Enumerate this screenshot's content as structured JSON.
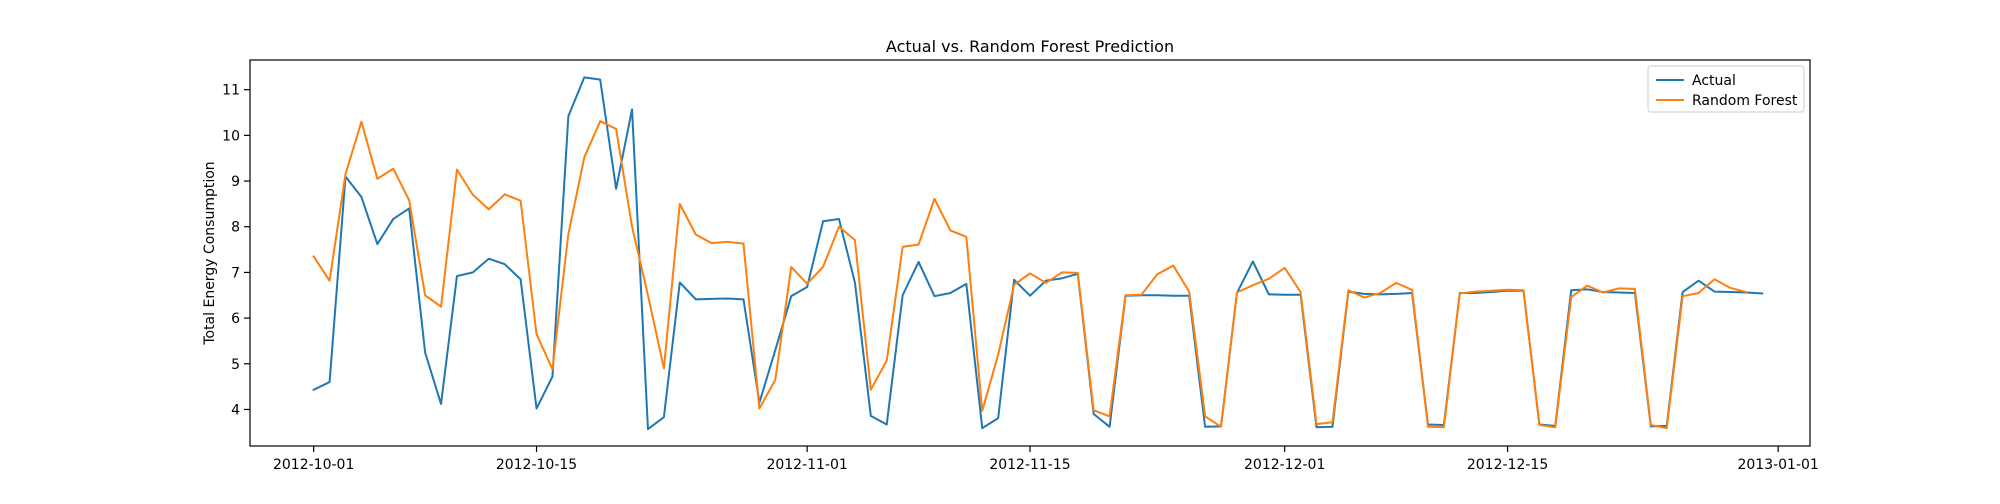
{
  "chart_data": {
    "type": "line",
    "title": "Actual vs. Random Forest Prediction",
    "xlabel": "",
    "ylabel": "Total Energy Consumption",
    "x_range": [
      "2012-09-27",
      "2013-01-03"
    ],
    "ylim": [
      3.2,
      11.65
    ],
    "x_ticks": [
      "2012-10-01",
      "2012-10-15",
      "2012-11-01",
      "2012-11-15",
      "2012-12-01",
      "2012-12-15",
      "2013-01-01"
    ],
    "y_ticks": [
      4,
      5,
      6,
      7,
      8,
      9,
      10,
      11
    ],
    "grid": false,
    "legend_position": "top-right",
    "x": [
      "2012-10-01",
      "2012-10-02",
      "2012-10-03",
      "2012-10-04",
      "2012-10-05",
      "2012-10-06",
      "2012-10-07",
      "2012-10-08",
      "2012-10-09",
      "2012-10-10",
      "2012-10-11",
      "2012-10-12",
      "2012-10-13",
      "2012-10-14",
      "2012-10-15",
      "2012-10-16",
      "2012-10-17",
      "2012-10-18",
      "2012-10-19",
      "2012-10-20",
      "2012-10-21",
      "2012-10-22",
      "2012-10-23",
      "2012-10-24",
      "2012-10-25",
      "2012-10-26",
      "2012-10-27",
      "2012-10-28",
      "2012-10-29",
      "2012-10-30",
      "2012-10-31",
      "2012-11-01",
      "2012-11-02",
      "2012-11-03",
      "2012-11-04",
      "2012-11-05",
      "2012-11-06",
      "2012-11-07",
      "2012-11-08",
      "2012-11-09",
      "2012-11-10",
      "2012-11-11",
      "2012-11-12",
      "2012-11-13",
      "2012-11-14",
      "2012-11-15",
      "2012-11-16",
      "2012-11-17",
      "2012-11-18",
      "2012-11-19",
      "2012-11-20",
      "2012-11-21",
      "2012-11-22",
      "2012-11-23",
      "2012-11-24",
      "2012-11-25",
      "2012-11-26",
      "2012-11-27",
      "2012-11-28",
      "2012-11-29",
      "2012-11-30",
      "2012-12-01",
      "2012-12-02",
      "2012-12-03",
      "2012-12-04",
      "2012-12-05",
      "2012-12-06",
      "2012-12-07",
      "2012-12-08",
      "2012-12-09",
      "2012-12-10",
      "2012-12-11",
      "2012-12-12",
      "2012-12-13",
      "2012-12-14",
      "2012-12-15",
      "2012-12-16",
      "2012-12-17",
      "2012-12-18",
      "2012-12-19",
      "2012-12-20",
      "2012-12-21",
      "2012-12-22",
      "2012-12-23",
      "2012-12-24",
      "2012-12-25",
      "2012-12-26",
      "2012-12-27",
      "2012-12-28",
      "2012-12-29",
      "2012-12-30",
      "2012-12-31"
    ],
    "series": [
      {
        "name": "Actual",
        "color": "#1f77b4",
        "values": [
          4.43,
          4.6,
          9.1,
          8.65,
          7.62,
          8.17,
          8.4,
          5.25,
          4.12,
          6.92,
          7.0,
          7.3,
          7.18,
          6.85,
          4.02,
          4.72,
          10.42,
          11.27,
          11.22,
          8.83,
          10.57,
          3.57,
          3.83,
          6.78,
          6.41,
          6.42,
          6.43,
          6.41,
          4.15,
          5.3,
          6.48,
          6.68,
          8.12,
          8.17,
          6.78,
          3.86,
          3.67,
          6.5,
          7.23,
          6.48,
          6.55,
          6.75,
          3.59,
          3.81,
          6.84,
          6.49,
          6.82,
          6.87,
          6.97,
          3.9,
          3.62,
          6.49,
          6.5,
          6.5,
          6.49,
          6.49,
          3.62,
          3.63,
          6.55,
          7.24,
          6.52,
          6.51,
          6.51,
          3.61,
          3.62,
          6.58,
          6.53,
          6.52,
          6.53,
          6.55,
          3.67,
          3.66,
          6.55,
          6.55,
          6.57,
          6.6,
          6.6,
          3.67,
          3.64,
          6.61,
          6.63,
          6.57,
          6.56,
          6.55,
          3.63,
          3.64,
          6.57,
          6.82,
          6.58,
          6.57,
          6.56,
          6.54
        ],
        "x": [
          "2012-10-01",
          "2012-10-02",
          "2012-10-03",
          "2012-10-04",
          "2012-10-05",
          "2012-10-06",
          "2012-10-07",
          "2012-10-08",
          "2012-10-09",
          "2012-10-10",
          "2012-10-11",
          "2012-10-12",
          "2012-10-13",
          "2012-10-14",
          "2012-10-15",
          "2012-10-16",
          "2012-10-17",
          "2012-10-18",
          "2012-10-19",
          "2012-10-20",
          "2012-10-21",
          "2012-10-22",
          "2012-10-23",
          "2012-10-24",
          "2012-10-25",
          "2012-10-26",
          "2012-10-27",
          "2012-10-28",
          "2012-10-29",
          "2012-10-30",
          "2012-10-31",
          "2012-11-01",
          "2012-11-02",
          "2012-11-03",
          "2012-11-04",
          "2012-11-05",
          "2012-11-06",
          "2012-11-07",
          "2012-11-08",
          "2012-11-09",
          "2012-11-10",
          "2012-11-11",
          "2012-11-12",
          "2012-11-13",
          "2012-11-14",
          "2012-11-15",
          "2012-11-16",
          "2012-11-17",
          "2012-11-18",
          "2012-11-19",
          "2012-11-20",
          "2012-11-21",
          "2012-11-22",
          "2012-11-23",
          "2012-11-24",
          "2012-11-25",
          "2012-11-26",
          "2012-11-27",
          "2012-11-28",
          "2012-11-29",
          "2012-11-30",
          "2012-12-01",
          "2012-12-02",
          "2012-12-03",
          "2012-12-04",
          "2012-12-05",
          "2012-12-06",
          "2012-12-07",
          "2012-12-08",
          "2012-12-09",
          "2012-12-10",
          "2012-12-11",
          "2012-12-12",
          "2012-12-13",
          "2012-12-14",
          "2012-12-15",
          "2012-12-16",
          "2012-12-17",
          "2012-12-18",
          "2012-12-19",
          "2012-12-20",
          "2012-12-21",
          "2012-12-22",
          "2012-12-23",
          "2012-12-24",
          "2012-12-25",
          "2012-12-26",
          "2012-12-27",
          "2012-12-28",
          "2012-12-29",
          "2012-12-30",
          "2012-12-31"
        ]
      },
      {
        "name": "Random Forest",
        "color": "#ff7f0e",
        "values": [
          7.35,
          6.82,
          9.15,
          10.3,
          9.05,
          9.27,
          8.58,
          6.5,
          6.25,
          9.25,
          8.7,
          8.38,
          8.71,
          8.57,
          5.65,
          4.88,
          7.84,
          9.52,
          10.31,
          10.14,
          8.0,
          6.5,
          4.9,
          8.5,
          7.83,
          7.64,
          7.67,
          7.63,
          4.02,
          4.65,
          7.12,
          6.75,
          7.12,
          8.0,
          7.71,
          4.43,
          5.07,
          7.56,
          7.61,
          8.61,
          7.92,
          7.78,
          3.97,
          5.2,
          6.73,
          6.98,
          6.77,
          7.0,
          6.99,
          3.98,
          3.85,
          6.5,
          6.51,
          6.96,
          7.15,
          6.58,
          3.85,
          3.62,
          6.56,
          6.72,
          6.86,
          7.1,
          6.57,
          3.68,
          3.72,
          6.61,
          6.45,
          6.55,
          6.77,
          6.62,
          3.62,
          3.61,
          6.54,
          6.58,
          6.6,
          6.62,
          6.61,
          3.66,
          3.61,
          6.46,
          6.71,
          6.56,
          6.65,
          6.64,
          3.66,
          3.59,
          6.48,
          6.55,
          6.85,
          6.66,
          6.57
        ],
        "x": [
          "2012-10-01",
          "2012-10-02",
          "2012-10-03",
          "2012-10-04",
          "2012-10-05",
          "2012-10-06",
          "2012-10-07",
          "2012-10-08",
          "2012-10-09",
          "2012-10-10",
          "2012-10-11",
          "2012-10-12",
          "2012-10-13",
          "2012-10-14",
          "2012-10-15",
          "2012-10-16",
          "2012-10-17",
          "2012-10-18",
          "2012-10-19",
          "2012-10-20",
          "2012-10-21",
          "2012-10-22",
          "2012-10-23",
          "2012-10-24",
          "2012-10-25",
          "2012-10-26",
          "2012-10-27",
          "2012-10-28",
          "2012-10-29",
          "2012-10-30",
          "2012-10-31",
          "2012-11-01",
          "2012-11-02",
          "2012-11-03",
          "2012-11-04",
          "2012-11-05",
          "2012-11-06",
          "2012-11-07",
          "2012-11-08",
          "2012-11-09",
          "2012-11-10",
          "2012-11-11",
          "2012-11-12",
          "2012-11-13",
          "2012-11-14",
          "2012-11-15",
          "2012-11-16",
          "2012-11-17",
          "2012-11-18",
          "2012-11-19",
          "2012-11-20",
          "2012-11-21",
          "2012-11-22",
          "2012-11-23",
          "2012-11-24",
          "2012-11-25",
          "2012-11-26",
          "2012-11-27",
          "2012-11-28",
          "2012-11-29",
          "2012-11-30",
          "2012-12-01",
          "2012-12-02",
          "2012-12-03",
          "2012-12-04",
          "2012-12-05",
          "2012-12-06",
          "2012-12-07",
          "2012-12-08",
          "2012-12-09",
          "2012-12-10",
          "2012-12-11",
          "2012-12-12",
          "2012-12-13",
          "2012-12-14",
          "2012-12-15",
          "2012-12-16",
          "2012-12-17",
          "2012-12-18",
          "2012-12-19",
          "2012-12-20",
          "2012-12-21",
          "2012-12-22",
          "2012-12-23",
          "2012-12-24",
          "2012-12-25",
          "2012-12-26",
          "2012-12-27",
          "2012-12-28",
          "2012-12-29",
          "2012-12-30"
        ]
      }
    ]
  }
}
